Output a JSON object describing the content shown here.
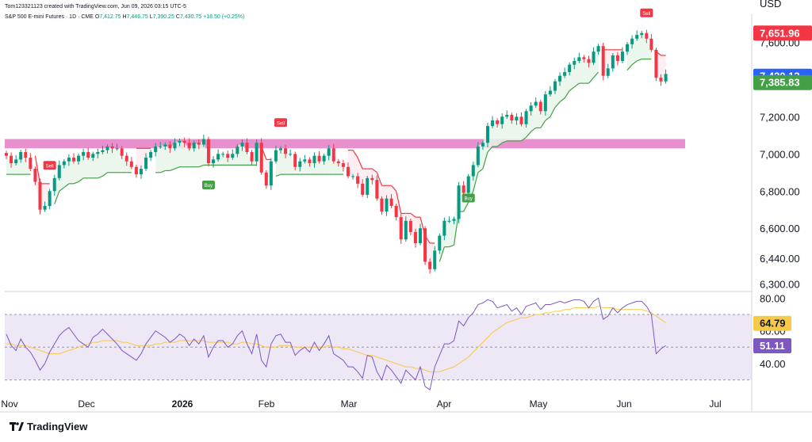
{
  "header": {
    "created": "Tom123321123 created with TradingView.com, Jun 09, 2026 03:15 UTC-5",
    "symbol": "S&P 500 E-mini Futures · 1D · CME",
    "o_label": "O",
    "o": "7,412.75",
    "h_label": "H",
    "h": "7,446.75",
    "l_label": "L",
    "l": "7,390.25",
    "c_label": "C",
    "c": "7,430.75",
    "chg": "+18.50 (+0.25%)"
  },
  "currency": "USD",
  "brand": "TradingView",
  "colors": {
    "up": "#089981",
    "down": "#f23645",
    "zone": "#e16fbf",
    "supertrend_up": "#43a047",
    "supertrend_down": "#f23645",
    "rsi_line": "#7e57c2",
    "rsi_ma": "#f7c948",
    "rsi_band": "#ede7f6"
  },
  "chart_data": [
    {
      "type": "candlestick",
      "title": "S&P 500 E-mini Futures",
      "price_axis": [
        "7,600.00",
        "7,430.75",
        "7,200.00",
        "7,000.00",
        "6,800.00",
        "6,600.00",
        "6,440.00",
        "6,300.00"
      ],
      "x_axis": [
        "Nov",
        "Dec",
        "2026",
        "Feb",
        "Mar",
        "Apr",
        "May",
        "Jun",
        "Jul"
      ],
      "badges": [
        {
          "label": "7,651.96",
          "color": "#f23645"
        },
        {
          "label": "7,430.75",
          "color": "#ffffff"
        },
        {
          "label": "7,420.13",
          "color": "#2962ff"
        },
        {
          "label": "7,385.83",
          "color": "#43a047"
        }
      ],
      "signals": [
        {
          "label": "Sell",
          "date": "Dec"
        },
        {
          "label": "Buy",
          "date": "2026"
        },
        {
          "label": "Sell",
          "date": "Feb"
        },
        {
          "label": "Buy",
          "date": "Apr"
        },
        {
          "label": "Sell",
          "date": "Jun"
        }
      ],
      "zone": {
        "from": 7030,
        "to": 7080
      },
      "ylim": [
        6260,
        7700
      ],
      "closes": [
        6990,
        6950,
        6970,
        7010,
        6980,
        6920,
        6850,
        6700,
        6720,
        6800,
        6870,
        6940,
        6960,
        6980,
        6960,
        6990,
        7010,
        6980,
        7000,
        7010,
        7020,
        7040,
        7030,
        7030,
        6990,
        6960,
        6930,
        6890,
        6920,
        6980,
        7010,
        7040,
        7040,
        7050,
        7030,
        7060,
        7070,
        7060,
        7030,
        7060,
        7050,
        7080,
        6950,
        6970,
        7000,
        7000,
        6980,
        7000,
        7040,
        7060,
        7010,
        6960,
        7060,
        6900,
        6830,
        6960,
        7020,
        7030,
        7000,
        7000,
        6930,
        6960,
        6970,
        6950,
        6990,
        6960,
        6990,
        7030,
        6960,
        6950,
        6930,
        6880,
        6880,
        6840,
        6780,
        6870,
        6860,
        6760,
        6690,
        6760,
        6720,
        6660,
        6540,
        6640,
        6580,
        6520,
        6600,
        6420,
        6380,
        6480,
        6560,
        6640,
        6640,
        6650,
        6830,
        6790,
        6880,
        6940,
        7040,
        7060,
        7150,
        7180,
        7160,
        7200,
        7210,
        7180,
        7200,
        7160,
        7230,
        7260,
        7280,
        7230,
        7320,
        7340,
        7390,
        7420,
        7440,
        7480,
        7500,
        7520,
        7510,
        7490,
        7550,
        7580,
        7420,
        7460,
        7530,
        7500,
        7550,
        7590,
        7620,
        7640,
        7650,
        7620,
        7560,
        7410,
        7390,
        7430
      ]
    },
    {
      "type": "line",
      "title": "RSI",
      "axis": [
        "80.00",
        "60.00",
        "40.00"
      ],
      "ylim": [
        25,
        84
      ],
      "bands": [
        30,
        50,
        70
      ],
      "badges": [
        {
          "label": "64.79",
          "color": "#f7c948"
        },
        {
          "label": "51.11",
          "color": "#7e57c2"
        }
      ],
      "series": [
        {
          "values": [
            58,
            51,
            48,
            55,
            50,
            47,
            42,
            36,
            40,
            47,
            52,
            57,
            60,
            62,
            58,
            54,
            52,
            50,
            56,
            58,
            61,
            58,
            55,
            52,
            48,
            46,
            44,
            42,
            46,
            52,
            56,
            60,
            58,
            56,
            53,
            55,
            58,
            56,
            51,
            55,
            52,
            57,
            44,
            50,
            54,
            54,
            50,
            52,
            57,
            60,
            52,
            46,
            58,
            42,
            38,
            52,
            57,
            58,
            53,
            53,
            45,
            48,
            50,
            47,
            53,
            48,
            52,
            57,
            46,
            44,
            42,
            38,
            38,
            35,
            31,
            45,
            44,
            35,
            30,
            39,
            36,
            32,
            28,
            36,
            33,
            30,
            38,
            26,
            24,
            38,
            45,
            52,
            52,
            54,
            66,
            63,
            68,
            71,
            76,
            77,
            79,
            78,
            74,
            75,
            76,
            72,
            74,
            70,
            75,
            76,
            77,
            73,
            76,
            76,
            77,
            78,
            77,
            78,
            79,
            79,
            78,
            74,
            78,
            80,
            67,
            69,
            74,
            71,
            74,
            76,
            77,
            78,
            78,
            75,
            70,
            46,
            49,
            51
          ]
        },
        {
          "values": [
            52,
            52,
            51,
            51,
            51,
            50,
            49,
            48,
            47,
            46,
            46,
            46,
            47,
            48,
            49,
            50,
            51,
            52,
            53,
            53,
            54,
            54,
            54,
            54,
            53,
            53,
            52,
            51,
            51,
            51,
            51,
            52,
            52,
            53,
            53,
            53,
            54,
            54,
            54,
            54,
            54,
            54,
            53,
            53,
            53,
            53,
            53,
            52,
            52,
            53,
            53,
            52,
            52,
            51,
            50,
            50,
            50,
            51,
            51,
            51,
            50,
            50,
            50,
            50,
            50,
            50,
            50,
            51,
            50,
            50,
            49,
            49,
            48,
            47,
            46,
            45,
            45,
            44,
            43,
            42,
            41,
            40,
            39,
            38,
            38,
            37,
            37,
            36,
            35,
            35,
            35,
            36,
            37,
            38,
            40,
            42,
            44,
            47,
            50,
            53,
            56,
            59,
            61,
            63,
            65,
            66,
            67,
            68,
            68,
            69,
            70,
            70,
            71,
            71,
            72,
            72,
            73,
            73,
            74,
            74,
            74,
            74,
            74,
            75,
            74,
            74,
            74,
            73,
            73,
            73,
            73,
            73,
            73,
            72,
            71,
            69,
            67,
            65
          ]
        }
      ]
    }
  ]
}
